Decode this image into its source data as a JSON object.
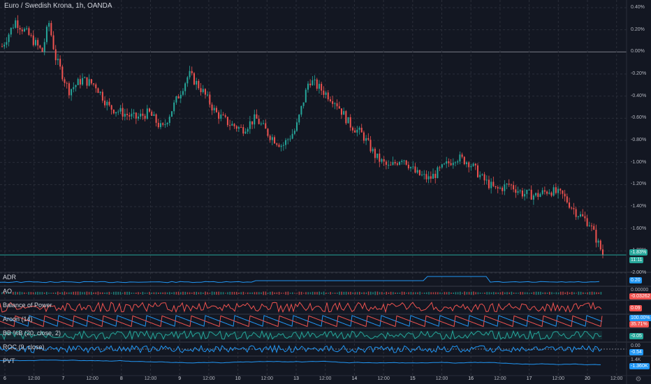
{
  "header": {
    "title": "Euro / Swedish Krona, 1h, OANDA"
  },
  "colors": {
    "background": "#131722",
    "up": "#26a69a",
    "down": "#ef5350",
    "blue": "#2196f3",
    "grid": "#2a2e39"
  },
  "price_axis": {
    "ticks": [
      "0.40%",
      "0.20%",
      "0.00%",
      "-0.20%",
      "-0.40%",
      "-0.60%",
      "-0.80%",
      "-1.00%",
      "-1.20%",
      "-1.40%",
      "-1.60%",
      "-1.80%",
      "-2.00%"
    ]
  },
  "price_badges": {
    "last_change": "-1.83%",
    "countdown": "11:11"
  },
  "time_axis": {
    "ticks": [
      "6",
      "12:00",
      "7",
      "12:00",
      "8",
      "12:00",
      "9",
      "12:00",
      "10",
      "12:00",
      "13",
      "12:00",
      "14",
      "12:00",
      "15",
      "12:00",
      "16",
      "12:00",
      "17",
      "12:00",
      "20",
      "12:00"
    ]
  },
  "indicators": [
    {
      "name": "ADR",
      "values": [
        "0.20"
      ]
    },
    {
      "name": "AO",
      "values": [
        "0.00000",
        "-0.03262"
      ]
    },
    {
      "name": "Balance of Power",
      "values": [
        "0.09"
      ]
    },
    {
      "name": "Aroon (14)",
      "values": [
        "100.00%",
        "35.71%"
      ]
    },
    {
      "name": "BB %B (20, close, 2)",
      "values": [
        "-0.05"
      ]
    },
    {
      "name": "ROC (9, close)",
      "values": [
        "0.00",
        "-0.54"
      ]
    },
    {
      "name": "PVT",
      "values": [
        "1.4K",
        "-1.360K"
      ]
    }
  ],
  "chart_data": {
    "type": "candlestick",
    "title": "Euro / Swedish Krona, 1h, OANDA",
    "y_unit": "% change",
    "y_range": [
      -2.0,
      0.4
    ],
    "x_labels": [
      "6",
      "12:00",
      "7",
      "12:00",
      "8",
      "12:00",
      "9",
      "12:00",
      "10",
      "12:00",
      "13",
      "12:00",
      "14",
      "12:00",
      "15",
      "12:00",
      "16",
      "12:00",
      "17",
      "12:00",
      "20",
      "12:00"
    ],
    "close_path": [
      [
        0,
        0.05
      ],
      [
        2,
        0.28
      ],
      [
        4,
        0.15
      ],
      [
        6,
        0.0
      ],
      [
        7,
        0.27
      ],
      [
        8,
        -0.05
      ],
      [
        10,
        -0.35
      ],
      [
        12,
        -0.25
      ],
      [
        14,
        -0.3
      ],
      [
        16,
        -0.5
      ],
      [
        18,
        -0.55
      ],
      [
        20,
        -0.6
      ],
      [
        22,
        -0.55
      ],
      [
        24,
        -0.7
      ],
      [
        26,
        -0.45
      ],
      [
        28,
        -0.2
      ],
      [
        30,
        -0.35
      ],
      [
        32,
        -0.55
      ],
      [
        34,
        -0.65
      ],
      [
        36,
        -0.7
      ],
      [
        38,
        -0.6
      ],
      [
        40,
        -0.75
      ],
      [
        42,
        -0.85
      ],
      [
        44,
        -0.7
      ],
      [
        46,
        -0.25
      ],
      [
        48,
        -0.35
      ],
      [
        50,
        -0.45
      ],
      [
        52,
        -0.65
      ],
      [
        54,
        -0.75
      ],
      [
        56,
        -0.95
      ],
      [
        58,
        -1.05
      ],
      [
        60,
        -0.95
      ],
      [
        62,
        -1.1
      ],
      [
        64,
        -1.15
      ],
      [
        66,
        -1.05
      ],
      [
        68,
        -0.95
      ],
      [
        70,
        -1.0
      ],
      [
        72,
        -1.15
      ],
      [
        74,
        -1.25
      ],
      [
        76,
        -1.2
      ],
      [
        78,
        -1.28
      ],
      [
        80,
        -1.3
      ],
      [
        82,
        -1.25
      ],
      [
        84,
        -1.3
      ],
      [
        86,
        -1.45
      ],
      [
        88,
        -1.55
      ],
      [
        90,
        -1.83
      ]
    ]
  }
}
